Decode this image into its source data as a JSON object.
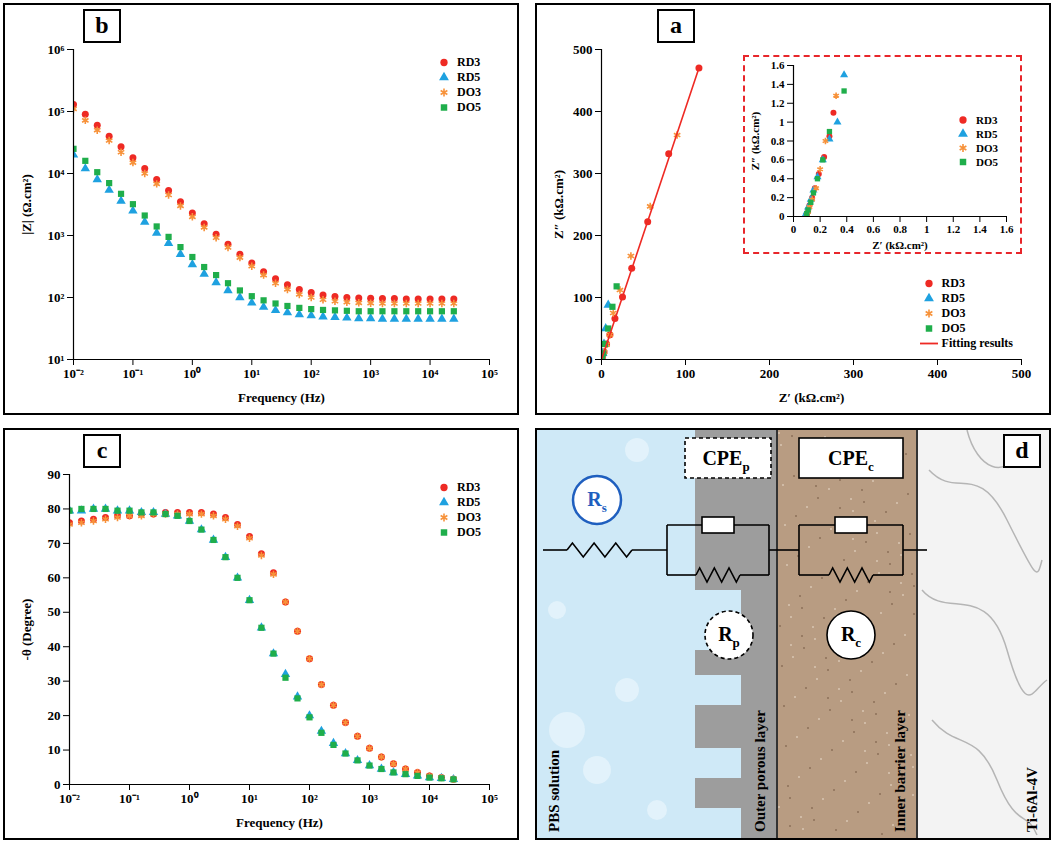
{
  "chart_data": [
    {
      "panel": "b",
      "type": "scatter",
      "log": true,
      "x_label": "Frequency (Hz)",
      "y_label": "|Z| (Ω.cm²)",
      "xlim": [
        0.01,
        100000
      ],
      "ylim": [
        10,
        1000000
      ],
      "xticks": [
        {
          "value": 0.01,
          "label": "10⁻²"
        },
        {
          "value": 0.1,
          "label": "10⁻¹"
        },
        {
          "value": 1,
          "label": "10⁰"
        },
        {
          "value": 10,
          "label": "10¹"
        },
        {
          "value": 100,
          "label": "10²"
        },
        {
          "value": 1000,
          "label": "10³"
        },
        {
          "value": 10000,
          "label": "10⁴"
        },
        {
          "value": 100000,
          "label": "10⁵"
        }
      ],
      "yticks": [
        {
          "value": 10,
          "label": "10¹"
        },
        {
          "value": 100,
          "label": "10²"
        },
        {
          "value": 1000,
          "label": "10³"
        },
        {
          "value": 10000,
          "label": "10⁴"
        },
        {
          "value": 100000,
          "label": "10⁵"
        },
        {
          "value": 1000000,
          "label": "10⁶"
        }
      ],
      "legend": "top-right",
      "x": [
        0.01,
        0.0158,
        0.0251,
        0.0398,
        0.0631,
        0.1,
        0.158,
        0.251,
        0.398,
        0.631,
        1,
        1.58,
        2.51,
        3.98,
        6.31,
        10,
        15.8,
        25.1,
        39.8,
        63.1,
        100,
        158,
        251,
        398,
        631,
        1000,
        1580,
        2510,
        3980,
        6310,
        10000,
        15800,
        25100
      ],
      "series": [
        {
          "name": "RD3",
          "color": "#ee2a24",
          "marker": "circle",
          "values": [
            130000,
            90000,
            60000,
            40000,
            27000,
            18000,
            12000,
            8000,
            5300,
            3500,
            2300,
            1550,
            1050,
            720,
            500,
            360,
            260,
            200,
            160,
            135,
            120,
            110,
            104,
            100,
            98,
            97,
            96,
            96,
            95,
            95,
            95,
            95,
            95
          ]
        },
        {
          "name": "RD5",
          "color": "#1ea1e0",
          "marker": "triangle",
          "values": [
            20000,
            12000,
            8000,
            5400,
            3600,
            2500,
            1650,
            1100,
            750,
            500,
            340,
            240,
            175,
            130,
            100,
            82,
            70,
            62,
            57,
            53,
            51,
            49,
            48,
            47,
            46,
            46,
            45,
            45,
            45,
            45,
            45,
            45,
            45
          ]
        },
        {
          "name": "DO3",
          "color": "#f7923a",
          "marker": "asterisk",
          "values": [
            110000,
            72000,
            50000,
            34000,
            22000,
            15000,
            10000,
            6800,
            4500,
            3000,
            2000,
            1350,
            920,
            640,
            440,
            320,
            230,
            170,
            135,
            112,
            100,
            92,
            87,
            84,
            82,
            81,
            80,
            80,
            80,
            80,
            80,
            80,
            80
          ]
        },
        {
          "name": "DO5",
          "color": "#1fae4b",
          "marker": "square",
          "values": [
            25000,
            16000,
            10500,
            7000,
            4700,
            3200,
            2100,
            1400,
            950,
            650,
            450,
            310,
            230,
            170,
            130,
            105,
            90,
            80,
            73,
            68,
            65,
            63,
            62,
            61,
            60,
            60,
            60,
            60,
            60,
            60,
            60,
            60,
            60
          ]
        }
      ]
    },
    {
      "panel": "a",
      "type": "scatter",
      "x_label": "Z′ (kΩ.cm²)",
      "y_label": "Z″ (kΩ.cm²)",
      "xlim": [
        0,
        500
      ],
      "ylim": [
        0,
        500
      ],
      "xticks": [
        0,
        100,
        200,
        300,
        400,
        500
      ],
      "yticks": [
        0,
        100,
        200,
        300,
        400,
        500
      ],
      "legend": "bottom-right",
      "series": [
        {
          "name": "RD3",
          "color": "#ee2a24",
          "marker": "circle",
          "x": [
            0.3,
            1,
            3,
            6,
            10,
            16,
            25,
            36,
            55,
            80,
            116
          ],
          "values": [
            1.2,
            4,
            12,
            25,
            40,
            66,
            101,
            147,
            222,
            332,
            470
          ]
        },
        {
          "name": "RD5",
          "color": "#1ea1e0",
          "marker": "triangle",
          "x": [
            0.2,
            0.6,
            1.5,
            3,
            5,
            8
          ],
          "values": [
            1,
            3,
            10,
            25,
            50,
            88
          ]
        },
        {
          "name": "DO3",
          "color": "#f7923a",
          "marker": "asterisk",
          "x": [
            0.3,
            1,
            3,
            6,
            10,
            14,
            22,
            35,
            58,
            90
          ],
          "values": [
            1.3,
            4,
            12,
            24,
            40,
            75,
            112,
            167,
            247,
            362
          ]
        },
        {
          "name": "DO5",
          "color": "#1fae4b",
          "marker": "square",
          "x": [
            0.2,
            0.7,
            2,
            4,
            8,
            13,
            18
          ],
          "values": [
            1,
            3,
            10,
            25,
            50,
            85,
            118
          ]
        },
        {
          "name": "Fitting results",
          "type": "line",
          "color": "#ee2a24",
          "line_style": "solid",
          "x": [
            0,
            116
          ],
          "values": [
            0,
            470
          ]
        }
      ],
      "inset": {
        "type": "scatter",
        "x_label": "Z′ (kΩ.cm²)",
        "y_label": "Z″ (kΩ.cm²)",
        "xlim": [
          0,
          1.6
        ],
        "ylim": [
          0,
          1.6
        ],
        "xticks": [
          0,
          0.2,
          0.4,
          0.6,
          0.8,
          1,
          1.2,
          1.4,
          1.6
        ],
        "yticks": [
          0,
          0.2,
          0.4,
          0.6,
          0.8,
          1,
          1.2,
          1.4,
          1.6
        ],
        "legend": "right",
        "series": [
          {
            "name": "RD3",
            "color": "#ee2a24",
            "marker": "circle",
            "x": [
              0.1,
              0.11,
              0.12,
              0.14,
              0.16,
              0.19,
              0.23,
              0.27,
              0.3
            ],
            "values": [
              0.02,
              0.06,
              0.12,
              0.2,
              0.3,
              0.45,
              0.63,
              0.85,
              1.1
            ]
          },
          {
            "name": "RD5",
            "color": "#1ea1e0",
            "marker": "triangle",
            "x": [
              0.09,
              0.1,
              0.11,
              0.13,
              0.15,
              0.18,
              0.22,
              0.27,
              0.33,
              0.38
            ],
            "values": [
              0.02,
              0.05,
              0.1,
              0.18,
              0.28,
              0.42,
              0.6,
              0.82,
              1.0,
              1.5
            ]
          },
          {
            "name": "DO3",
            "color": "#f7923a",
            "marker": "asterisk",
            "x": [
              0.1,
              0.11,
              0.12,
              0.14,
              0.17,
              0.2,
              0.24,
              0.32
            ],
            "values": [
              0.02,
              0.05,
              0.1,
              0.18,
              0.3,
              0.5,
              0.8,
              1.28
            ]
          },
          {
            "name": "DO5",
            "color": "#1fae4b",
            "marker": "square",
            "x": [
              0.1,
              0.11,
              0.13,
              0.15,
              0.18,
              0.22,
              0.27,
              0.38
            ],
            "values": [
              0.03,
              0.07,
              0.15,
              0.25,
              0.4,
              0.6,
              0.9,
              1.33
            ]
          }
        ]
      }
    },
    {
      "panel": "c",
      "type": "scatter",
      "log": "x",
      "x_label": "Frequency (Hz)",
      "y_label": "-θ (Degree)",
      "xlim": [
        0.01,
        100000
      ],
      "ylim": [
        0,
        90
      ],
      "xticks": [
        {
          "value": 0.01,
          "label": "10⁻²"
        },
        {
          "value": 0.1,
          "label": "10⁻¹"
        },
        {
          "value": 1,
          "label": "10⁰"
        },
        {
          "value": 10,
          "label": "10¹"
        },
        {
          "value": 100,
          "label": "10²"
        },
        {
          "value": 1000,
          "label": "10³"
        },
        {
          "value": 10000,
          "label": "10⁴"
        },
        {
          "value": 100000,
          "label": "10⁵"
        }
      ],
      "yticks": [
        0,
        10,
        20,
        30,
        40,
        50,
        60,
        70,
        80,
        90
      ],
      "legend": "top-right",
      "x": [
        0.01,
        0.0158,
        0.0251,
        0.0398,
        0.0631,
        0.1,
        0.158,
        0.251,
        0.398,
        0.631,
        1,
        1.58,
        2.51,
        3.98,
        6.31,
        10,
        15.8,
        25.1,
        39.8,
        63.1,
        100,
        158,
        251,
        398,
        631,
        1000,
        1580,
        2510,
        3980,
        6310,
        10000,
        15800,
        25100
      ],
      "series": [
        {
          "name": "RD3",
          "color": "#ee2a24",
          "marker": "circle",
          "values": [
            76,
            76.5,
            77,
            77.5,
            78,
            78,
            78.5,
            78.5,
            79,
            79,
            79,
            79,
            78.5,
            77.5,
            75.5,
            72,
            67,
            61.5,
            53,
            44.5,
            36.5,
            29,
            23,
            18,
            14,
            10.5,
            8,
            6,
            4.5,
            3.5,
            2.5,
            2,
            1.5
          ]
        },
        {
          "name": "RD5",
          "color": "#1ea1e0",
          "marker": "triangle",
          "values": [
            79.5,
            79.5,
            80,
            80,
            79.5,
            79.5,
            79,
            79,
            78.5,
            78,
            76.5,
            74,
            71,
            66,
            60,
            53.5,
            45.5,
            38,
            32,
            25.5,
            20,
            15.5,
            12,
            9,
            7,
            5.5,
            4.5,
            3.5,
            3,
            2.5,
            2,
            1.8,
            1.5
          ]
        },
        {
          "name": "DO3",
          "color": "#f7923a",
          "marker": "asterisk",
          "values": [
            75.5,
            76,
            76.5,
            77,
            77.5,
            78,
            78,
            78.5,
            78.5,
            78.5,
            78.5,
            78.5,
            78,
            77,
            75,
            71.5,
            66.5,
            61,
            53,
            44.5,
            36.5,
            29,
            23,
            18,
            14,
            10.5,
            8,
            6,
            4.5,
            3.5,
            2.5,
            2,
            1.5
          ]
        },
        {
          "name": "DO5",
          "color": "#1fae4b",
          "marker": "square",
          "values": [
            79.5,
            80,
            80,
            80,
            79.5,
            79.5,
            79,
            79,
            78.5,
            78,
            76.5,
            74,
            71,
            66,
            60,
            53.5,
            45.5,
            38,
            31,
            25,
            19.5,
            15,
            11.5,
            9,
            7,
            5.5,
            4.5,
            3.5,
            3,
            2.5,
            2,
            1.8,
            1.5
          ]
        }
      ]
    }
  ],
  "diagram": {
    "panel": "d",
    "components": {
      "Rs": {
        "text": "R",
        "sub": "s"
      },
      "CPEp": {
        "text": "CPE",
        "sub": "p"
      },
      "Rp": {
        "text": "R",
        "sub": "p"
      },
      "CPEc": {
        "text": "CPE",
        "sub": "c"
      },
      "Rc": {
        "text": "R",
        "sub": "c"
      }
    },
    "layers": [
      "PBS solution",
      "Outer porous layer",
      "Inner barrier layer",
      "Ti-6Al-4V"
    ]
  }
}
